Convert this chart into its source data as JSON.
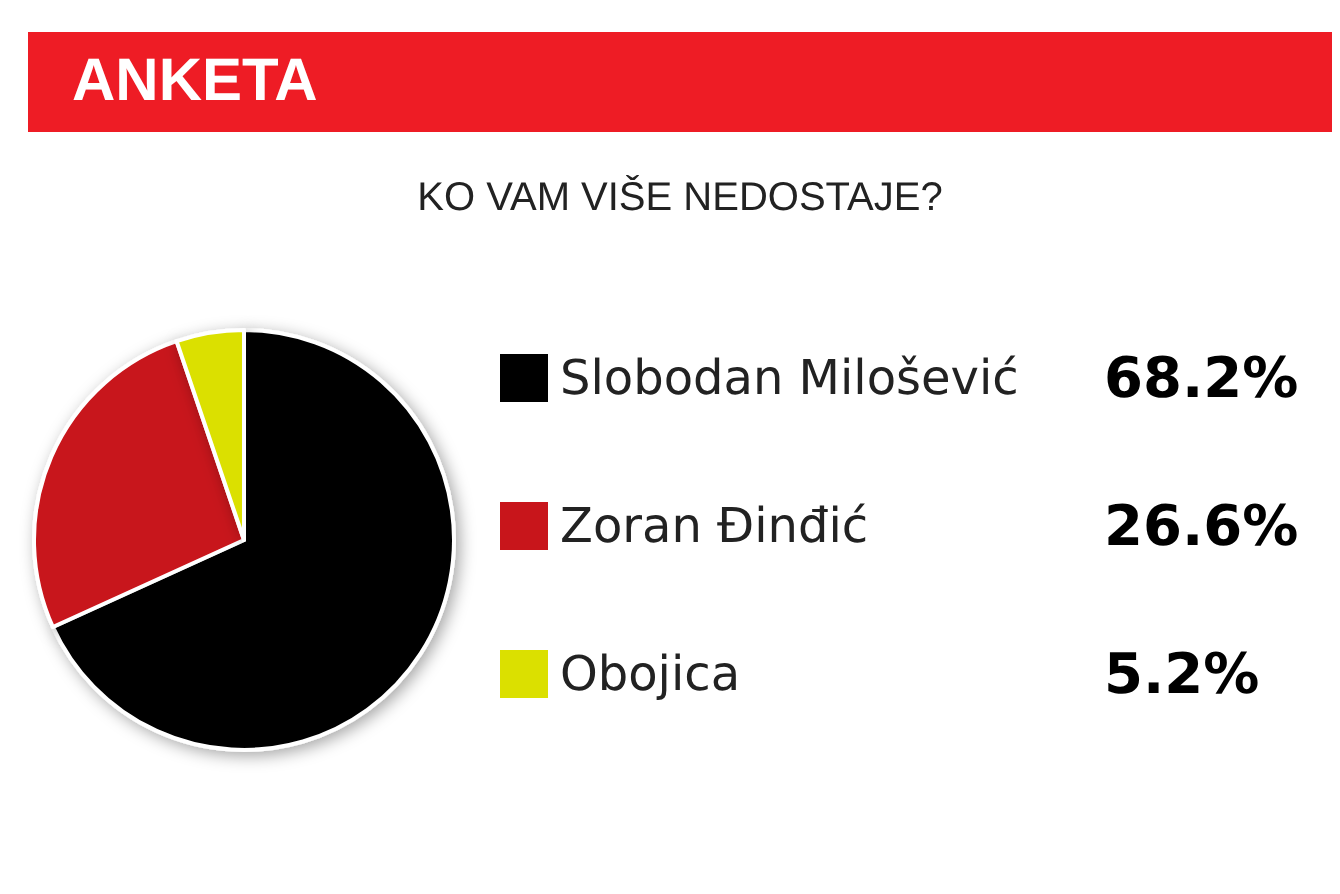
{
  "chart_data": {
    "type": "pie",
    "title": "ANKETA",
    "subtitle": "KO VAM VIŠE NEDOSTAJE?",
    "categories": [
      "Slobodan Milošević",
      "Zoran Đinđić",
      "Obojica"
    ],
    "values": [
      68.2,
      26.6,
      5.2
    ],
    "value_labels": [
      "68.2%",
      "26.6%",
      "5.2%"
    ],
    "colors": [
      "#000000",
      "#c8151b",
      "#dbe000"
    ],
    "legend": "right"
  }
}
